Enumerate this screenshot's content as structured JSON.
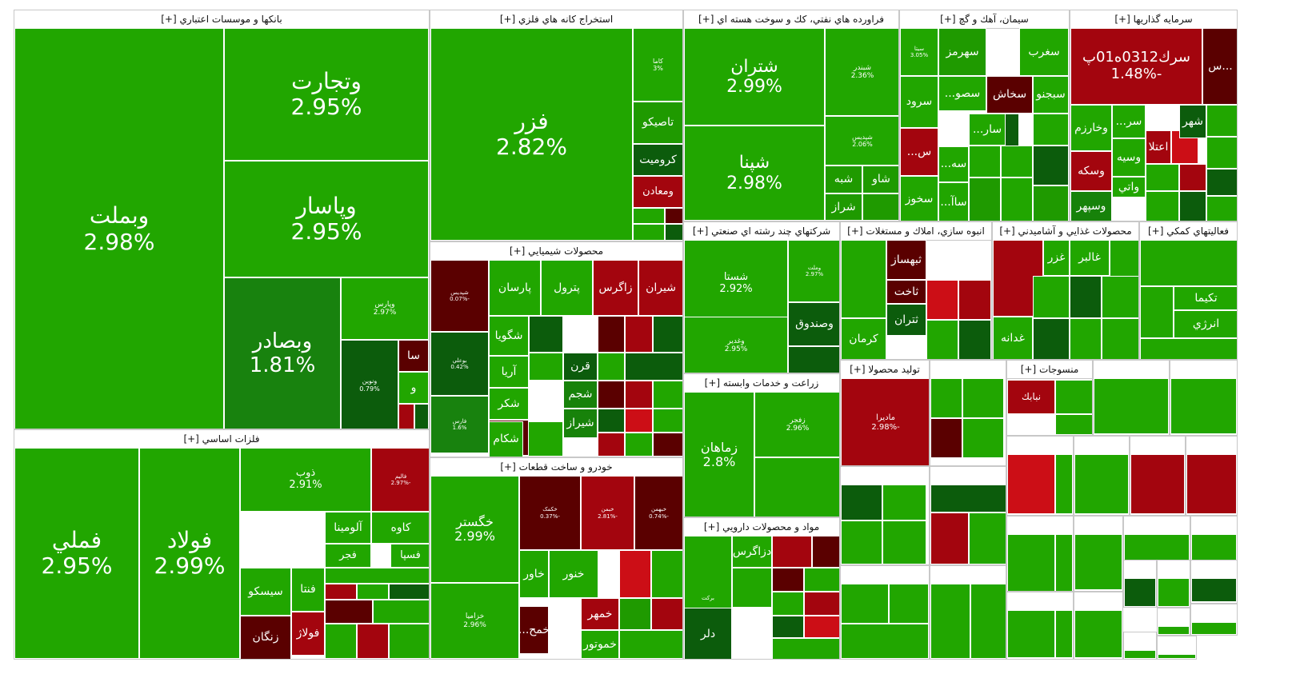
{
  "chart_data": {
    "type": "treemap",
    "colors": {
      "up_strong": "#21a600",
      "up": "#1f9a00",
      "up_mid": "#17820a",
      "up_dark": "#0c5c0c",
      "down_strong": "#cc0e16",
      "down": "#a3050e",
      "down_dark": "#5a0000",
      "down_deep": "#3a0000",
      "bright_green": "#34e014"
    },
    "sectors": [
      {
        "title": "بانکها و موسسات اعتباري [+]",
        "tiles": [
          {
            "symbol": "وبملت",
            "change": "2.98%",
            "color": "#21a600"
          },
          {
            "symbol": "وتجارت",
            "change": "2.95%",
            "color": "#21a600"
          },
          {
            "symbol": "وپاسار",
            "change": "2.95%",
            "color": "#21a600"
          },
          {
            "symbol": "وبصادر",
            "change": "1.81%",
            "color": "#18820e"
          },
          {
            "symbol": "وپارس",
            "change": "2.97%",
            "color": "#21a600"
          },
          {
            "symbol": "ونوين",
            "change": "0.79%",
            "color": "#0c5c0c"
          },
          {
            "symbol": "سا",
            "change": "",
            "color": "#5a0000"
          },
          {
            "symbol": "و",
            "change": "",
            "color": "#21a600"
          },
          {
            "symbol": "",
            "change": "",
            "color": "#a3050e"
          },
          {
            "symbol": "",
            "change": "",
            "color": "#0c5c0c"
          }
        ]
      },
      {
        "title": "استخراج کانه هاي فلزي [+]",
        "tiles": [
          {
            "symbol": "فزر",
            "change": "2.82%",
            "color": "#21a600"
          },
          {
            "symbol": "کاما",
            "change": "3%",
            "color": "#21a600"
          },
          {
            "symbol": "تاصيکو",
            "change": "",
            "color": "#1f9a00"
          },
          {
            "symbol": "کروميت",
            "change": "",
            "color": "#0c5c0c"
          },
          {
            "symbol": "ومعادن",
            "change": "",
            "color": "#a3050e"
          }
        ]
      },
      {
        "title": "فراورده هاي نفتي، كك و سوخت هسته اي [+]",
        "tiles": [
          {
            "symbol": "شتران",
            "change": "2.99%",
            "color": "#21a600"
          },
          {
            "symbol": "شپنا",
            "change": "2.98%",
            "color": "#21a600"
          },
          {
            "symbol": "شبندر",
            "change": "2.36%",
            "color": "#21a600"
          },
          {
            "symbol": "شپديس",
            "change": "2.06%",
            "color": "#21a600"
          },
          {
            "symbol": "شبه",
            "change": "",
            "color": "#1f9a00"
          },
          {
            "symbol": "شاو",
            "change": "",
            "color": "#1f9a00"
          },
          {
            "symbol": "شراز",
            "change": "",
            "color": "#1f9a00"
          }
        ]
      },
      {
        "title": "سيمان، آهك و گچ [+]",
        "tiles": [
          {
            "symbol": "سيتا",
            "change": "3.05%",
            "color": "#21a600"
          },
          {
            "symbol": "سهرمز",
            "change": "",
            "color": "#1f9a00"
          },
          {
            "symbol": "سغرب",
            "change": "",
            "color": "#21a600"
          },
          {
            "symbol": "سرود",
            "change": "",
            "color": "#21a600"
          },
          {
            "symbol": "سصو...",
            "change": "",
            "color": "#21a600"
          },
          {
            "symbol": "سخاش",
            "change": "",
            "color": "#5a0000"
          },
          {
            "symbol": "سبجنو",
            "change": "",
            "color": "#21a600"
          },
          {
            "symbol": "س...",
            "change": "",
            "color": "#a3050e"
          },
          {
            "symbol": "سار...",
            "change": "",
            "color": "#21a600"
          },
          {
            "symbol": "سخوز",
            "change": "",
            "color": "#21a600"
          },
          {
            "symbol": "سه...",
            "change": "",
            "color": "#21a600"
          },
          {
            "symbol": "ساآ...",
            "change": "",
            "color": "#21a600"
          }
        ]
      },
      {
        "title": "سرمايه گذاريها [+]",
        "tiles": [
          {
            "symbol": "سرك0312ه01پ",
            "change": "-1.48%",
            "color": "#a3050e"
          },
          {
            "symbol": "...س",
            "change": "",
            "color": "#5a0000"
          },
          {
            "symbol": "وخارزم",
            "change": "",
            "color": "#21a600"
          },
          {
            "symbol": "سر...",
            "change": "",
            "color": "#21a600"
          },
          {
            "symbol": "شهر",
            "change": "",
            "color": "#0c5c0c"
          },
          {
            "symbol": "وسكه",
            "change": "",
            "color": "#a3050e"
          },
          {
            "symbol": "وسيه",
            "change": "",
            "color": "#21a600"
          },
          {
            "symbol": "اعتلا",
            "change": "",
            "color": "#a3050e"
          },
          {
            "symbol": "وسپهر",
            "change": "",
            "color": "#17820a"
          },
          {
            "symbol": "واتي",
            "change": "",
            "color": "#21a600"
          }
        ]
      },
      {
        "title": "محصولات شيميايي [+]",
        "tiles": [
          {
            "symbol": "شپديس",
            "change": "-0.07%",
            "color": "#5a0000"
          },
          {
            "symbol": "پارسان",
            "change": "",
            "color": "#21a600"
          },
          {
            "symbol": "پترول",
            "change": "",
            "color": "#21a600"
          },
          {
            "symbol": "زاگرس",
            "change": "",
            "color": "#a3050e"
          },
          {
            "symbol": "شيران",
            "change": "",
            "color": "#a3050e"
          },
          {
            "symbol": "بوعلي",
            "change": "0.42%",
            "color": "#0c5c0c"
          },
          {
            "symbol": "شگويا",
            "change": "",
            "color": "#21a600"
          },
          {
            "symbol": "آريا",
            "change": "",
            "color": "#21a600"
          },
          {
            "symbol": "فارس",
            "change": "1.6%",
            "color": "#18820e"
          },
          {
            "symbol": "شکر",
            "change": "",
            "color": "#21a600"
          },
          {
            "symbol": "شدو",
            "change": "",
            "color": "#5a0000"
          },
          {
            "symbol": "قرن",
            "change": "",
            "color": "#0c5c0c"
          },
          {
            "symbol": "شجم",
            "change": "",
            "color": "#17820a"
          },
          {
            "symbol": "شکام",
            "change": "",
            "color": "#21a600"
          },
          {
            "symbol": "شيراز",
            "change": "",
            "color": "#17820a"
          }
        ]
      },
      {
        "title": "خودرو و ساخت قطعات [+]",
        "tiles": [
          {
            "symbol": "خگستر",
            "change": "2.99%",
            "color": "#21a600"
          },
          {
            "symbol": "خزاميا",
            "change": "2.96%",
            "color": "#21a600"
          },
          {
            "symbol": "خکمک",
            "change": "-0.37%",
            "color": "#5a0000"
          },
          {
            "symbol": "خبمن",
            "change": "-2.81%",
            "color": "#a3050e"
          },
          {
            "symbol": "خبهمن",
            "change": "-0.74%",
            "color": "#5a0000"
          },
          {
            "symbol": "خاور",
            "change": "",
            "color": "#21a600"
          },
          {
            "symbol": "خنور",
            "change": "",
            "color": "#21a600"
          },
          {
            "symbol": "خمهر",
            "change": "",
            "color": "#a3050e"
          },
          {
            "symbol": "خموتور",
            "change": "",
            "color": "#21a600"
          },
          {
            "symbol": "خمح...",
            "change": "",
            "color": "#5a0000"
          }
        ]
      },
      {
        "title": "شرکتهاي چند رشته اي صنعتي [+]",
        "tiles": [
          {
            "symbol": "شستا",
            "change": "2.92%",
            "color": "#21a600"
          },
          {
            "symbol": "وغدير",
            "change": "2.95%",
            "color": "#21a600"
          },
          {
            "symbol": "وصندوق",
            "change": "",
            "color": "#0c5c0c"
          },
          {
            "symbol": "وملت",
            "change": "2.97%",
            "color": "#21a600"
          }
        ]
      },
      {
        "title": "فلزات اساسي [+]",
        "tiles": [
          {
            "symbol": "فملي",
            "change": "2.95%",
            "color": "#21a600"
          },
          {
            "symbol": "فولاد",
            "change": "2.99%",
            "color": "#21a600"
          },
          {
            "symbol": "ذوب",
            "change": "2.91%",
            "color": "#21a600"
          },
          {
            "symbol": "فاليم",
            "change": "-2.97%",
            "color": "#a3050e"
          },
          {
            "symbol": "آلومينا",
            "change": "",
            "color": "#21a600"
          },
          {
            "symbol": "کاوه",
            "change": "",
            "color": "#21a600"
          },
          {
            "symbol": "فجر",
            "change": "",
            "color": "#21a600"
          },
          {
            "symbol": "فسپا",
            "change": "",
            "color": "#21a600"
          },
          {
            "symbol": "سيسکو",
            "change": "",
            "color": "#21a600"
          },
          {
            "symbol": "فنتا",
            "change": "",
            "color": "#21a600"
          },
          {
            "symbol": "زنگان",
            "change": "",
            "color": "#5a0000"
          },
          {
            "symbol": "فولاژ",
            "change": "",
            "color": "#a3050e"
          }
        ]
      },
      {
        "title": "زراعت و خدمات وابسته [+]",
        "tiles": [
          {
            "symbol": "زماهان",
            "change": "2.8%",
            "color": "#21a600"
          },
          {
            "symbol": "زفجر",
            "change": "2.96%",
            "color": "#21a600"
          }
        ]
      },
      {
        "title": "مواد و محصولات دارويي [+]",
        "tiles": [
          {
            "symbol": "برکت",
            "change": "",
            "color": "#21a600"
          },
          {
            "symbol": "دزاگرس",
            "change": "",
            "color": "#21a600"
          },
          {
            "symbol": "دلر",
            "change": "",
            "color": "#0c5c0c"
          }
        ]
      },
      {
        "title": "انبوه سازي، املاك و مستغلات [+]",
        "tiles": [
          {
            "symbol": "ثبهساز",
            "change": "",
            "color": "#5a0000"
          },
          {
            "symbol": "ثاخت",
            "change": "",
            "color": "#5a0000"
          },
          {
            "symbol": "ثتران",
            "change": "",
            "color": "#0c5c0c"
          },
          {
            "symbol": "کرمان",
            "change": "",
            "color": "#21a600"
          }
        ]
      },
      {
        "title": "محصولات غذايي و آشاميدني [+]",
        "tiles": [
          {
            "symbol": "غزر",
            "change": "",
            "color": "#21a600"
          },
          {
            "symbol": "غالبر",
            "change": "",
            "color": "#21a600"
          },
          {
            "symbol": "غدانه",
            "change": "",
            "color": "#21a600"
          }
        ]
      },
      {
        "title": "فعاليتهاي كمكي [+]",
        "tiles": [
          {
            "symbol": "تکيما",
            "change": "",
            "color": "#21a600"
          },
          {
            "symbol": "انرژي",
            "change": "",
            "color": "#21a600"
          }
        ]
      },
      {
        "title": "منسوجات [+]",
        "tiles": [
          {
            "symbol": "نبابك",
            "change": "",
            "color": "#a3050e"
          }
        ]
      },
      {
        "title": "توليد محصولا [+]",
        "tiles": [
          {
            "symbol": "ماديرا",
            "change": "-2.98%",
            "color": "#a3050e"
          }
        ]
      }
    ]
  }
}
